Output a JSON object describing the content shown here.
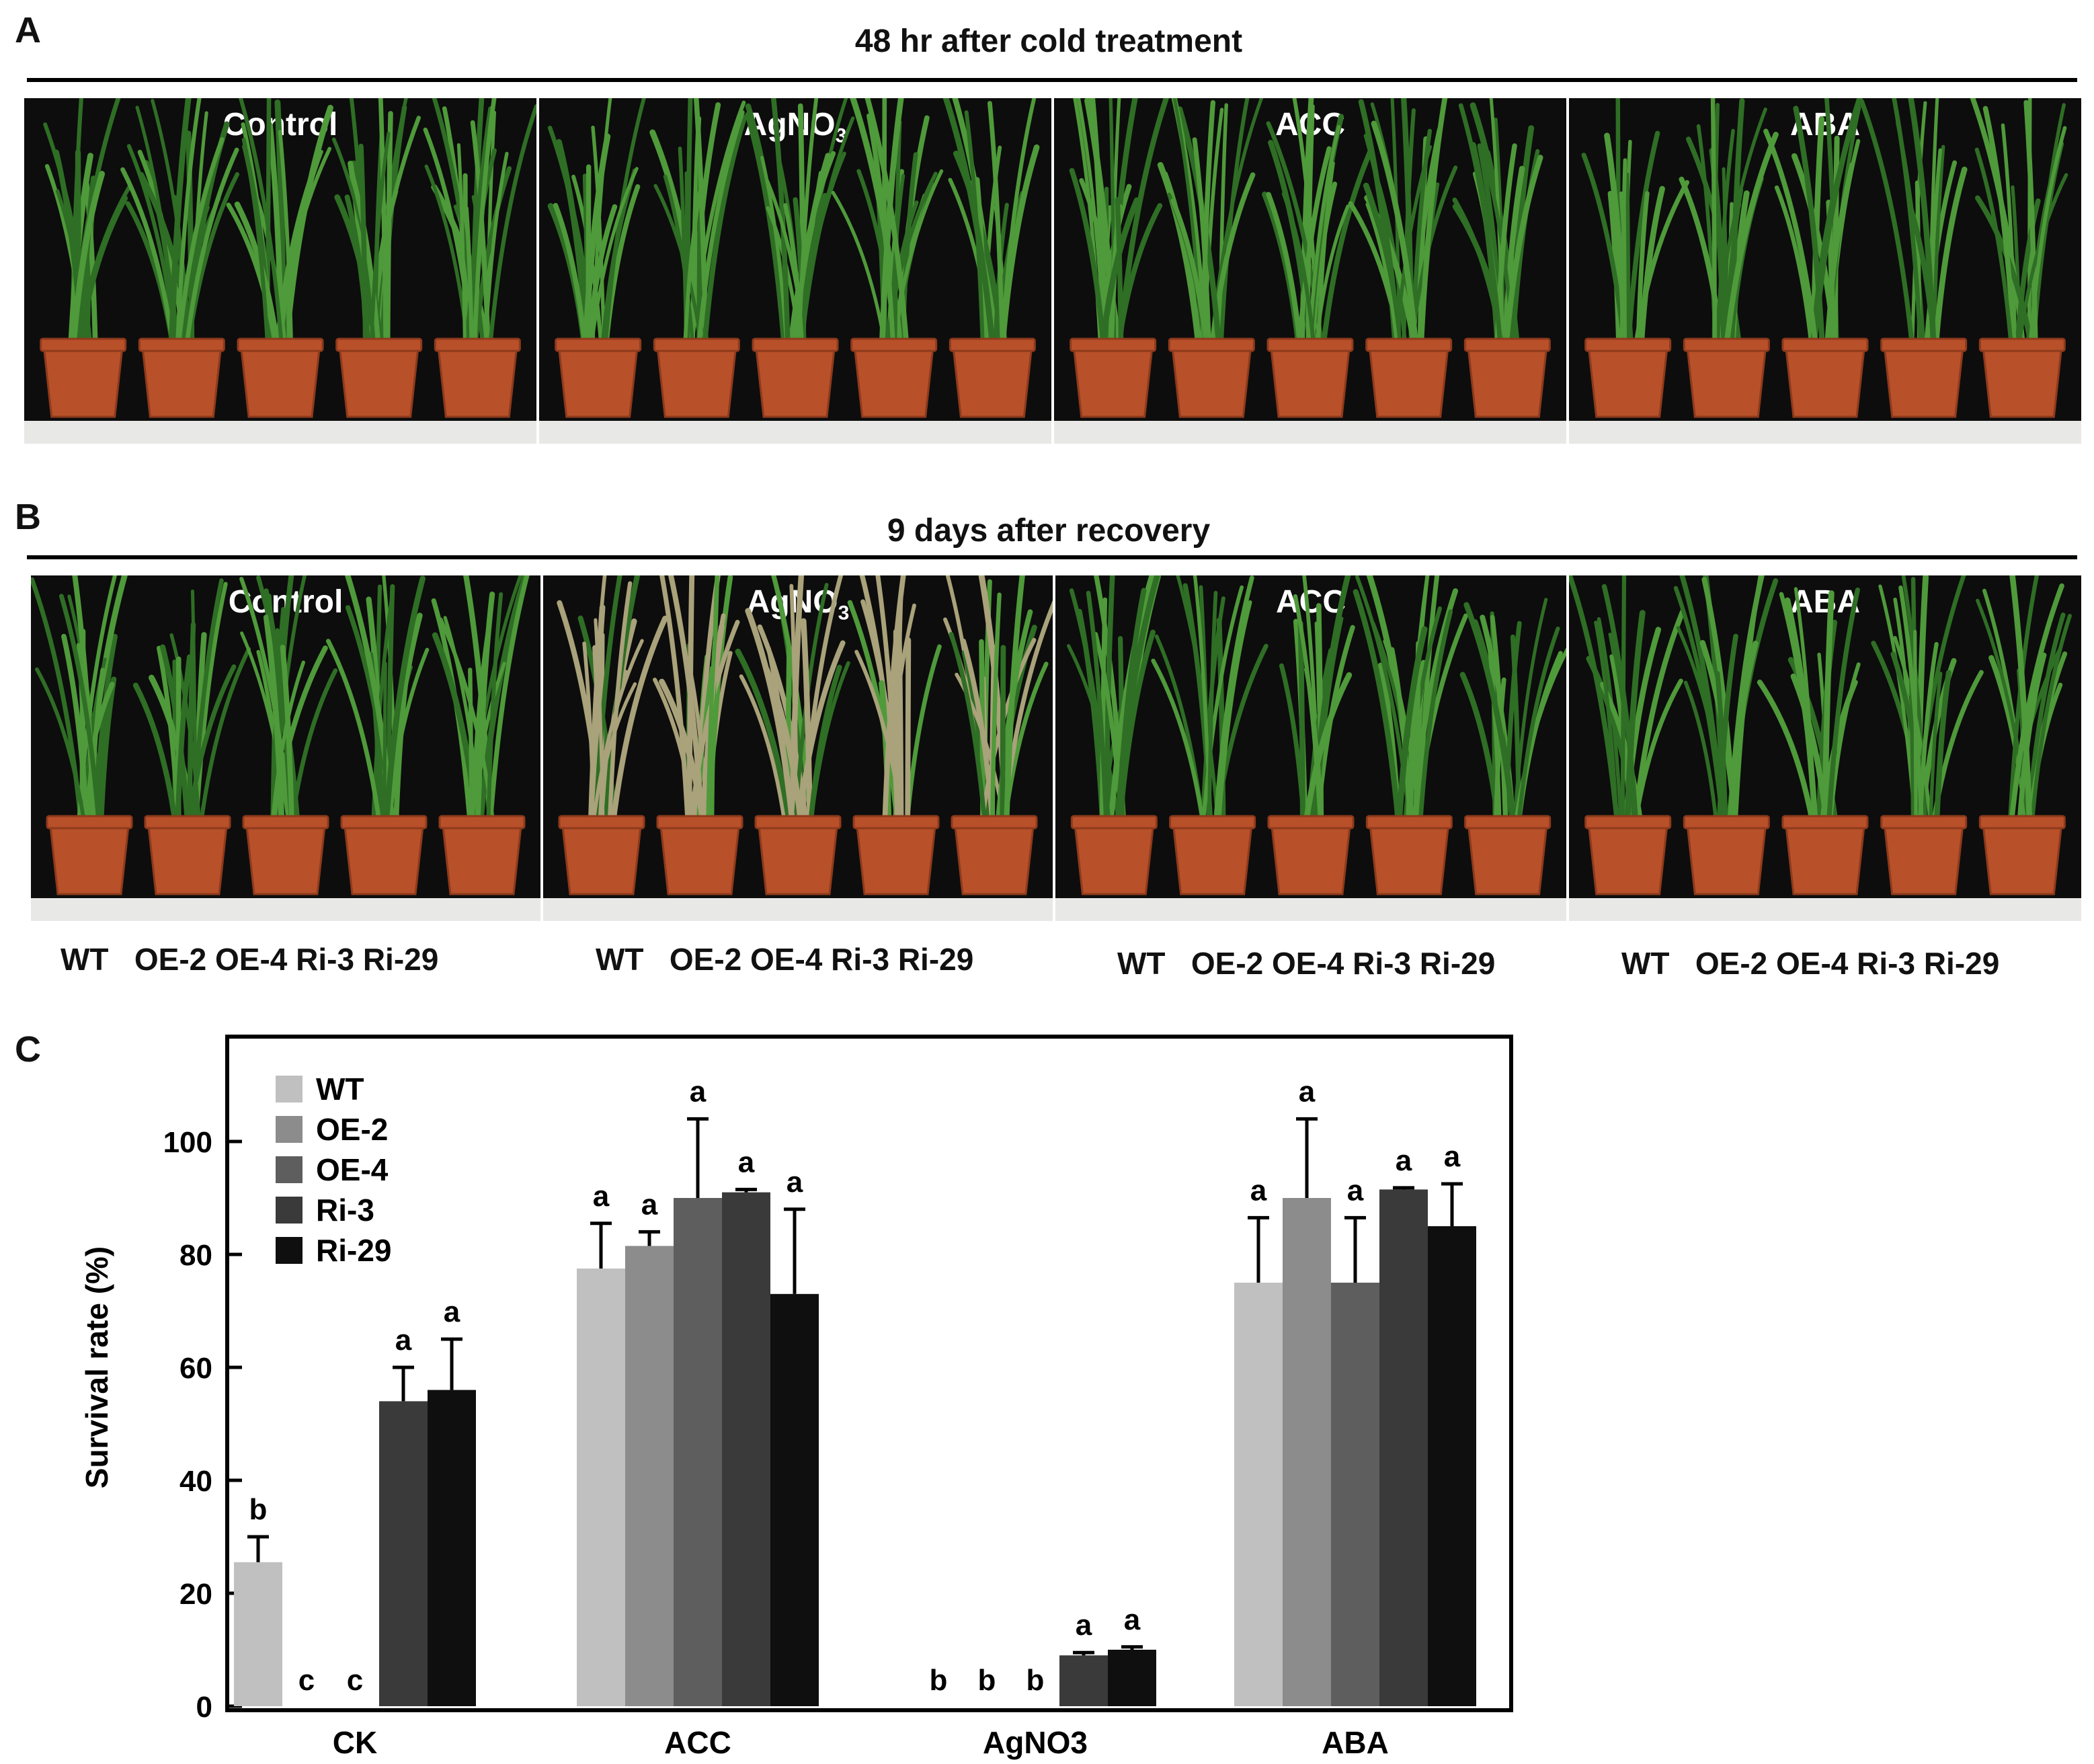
{
  "panels": {
    "A": {
      "letter": "A",
      "title": "48 hr after cold treatment",
      "photos": [
        {
          "label": "Control",
          "sub": ""
        },
        {
          "label": "AgNO",
          "sub": "3"
        },
        {
          "label": "ACC",
          "sub": ""
        },
        {
          "label": "ABA",
          "sub": ""
        }
      ]
    },
    "B": {
      "letter": "B",
      "title": "9 days after recovery",
      "photos": [
        {
          "label": "Control",
          "sub": ""
        },
        {
          "label": "AgNO",
          "sub": "3"
        },
        {
          "label": "ACC",
          "sub": ""
        },
        {
          "label": "ABA",
          "sub": ""
        }
      ],
      "genotype_labels": [
        "WT   OE-2 OE-4 Ri-3 Ri-29",
        "WT   OE-2 OE-4 Ri-3 Ri-29",
        "WT   OE-2 OE-4 Ri-3 Ri-29",
        "WT   OE-2 OE-4 Ri-3 Ri-29"
      ]
    },
    "C": {
      "letter": "C"
    }
  },
  "colors": {
    "pot": "#b8502a",
    "pot_dark": "#8e3a1c",
    "leaf": "#4f9a3a",
    "leaf_dark": "#2f6e25",
    "leaf_dry": "#a9a27a"
  },
  "chart_data": {
    "type": "bar",
    "ylabel": "Survival rate (%)",
    "xlabel": "",
    "ylim": [
      0,
      120
    ],
    "yticks": [
      0,
      20,
      40,
      60,
      80,
      100
    ],
    "categories": [
      "CK",
      "ACC",
      "AgNO3",
      "ABA"
    ],
    "legend_position": "top-left",
    "series": [
      {
        "name": "WT",
        "color": "#c0c0c0",
        "values": [
          25.5,
          77.5,
          0,
          75
        ],
        "errors": [
          4.5,
          8,
          0,
          11.5
        ],
        "letters": [
          "b",
          "a",
          "b",
          "a"
        ]
      },
      {
        "name": "OE-2",
        "color": "#8c8c8c",
        "values": [
          0,
          81.5,
          0,
          90
        ],
        "errors": [
          0,
          2.5,
          0,
          14
        ],
        "letters": [
          "c",
          "a",
          "b",
          "a"
        ]
      },
      {
        "name": "OE-4",
        "color": "#5e5e5e",
        "values": [
          0,
          90,
          0,
          75
        ],
        "errors": [
          0,
          14,
          0,
          11.5
        ],
        "letters": [
          "c",
          "a",
          "b",
          "a"
        ]
      },
      {
        "name": "Ri-3",
        "color": "#3a3a3a",
        "values": [
          54,
          91,
          9,
          91.5
        ],
        "errors": [
          6,
          0.5,
          0.5,
          0.3
        ],
        "letters": [
          "a",
          "a",
          "a",
          "a"
        ]
      },
      {
        "name": "Ri-29",
        "color": "#0f0f0f",
        "values": [
          56,
          73,
          10,
          85
        ],
        "errors": [
          9,
          15,
          0.5,
          7.5
        ],
        "letters": [
          "a",
          "a",
          "a",
          "a"
        ]
      }
    ]
  }
}
